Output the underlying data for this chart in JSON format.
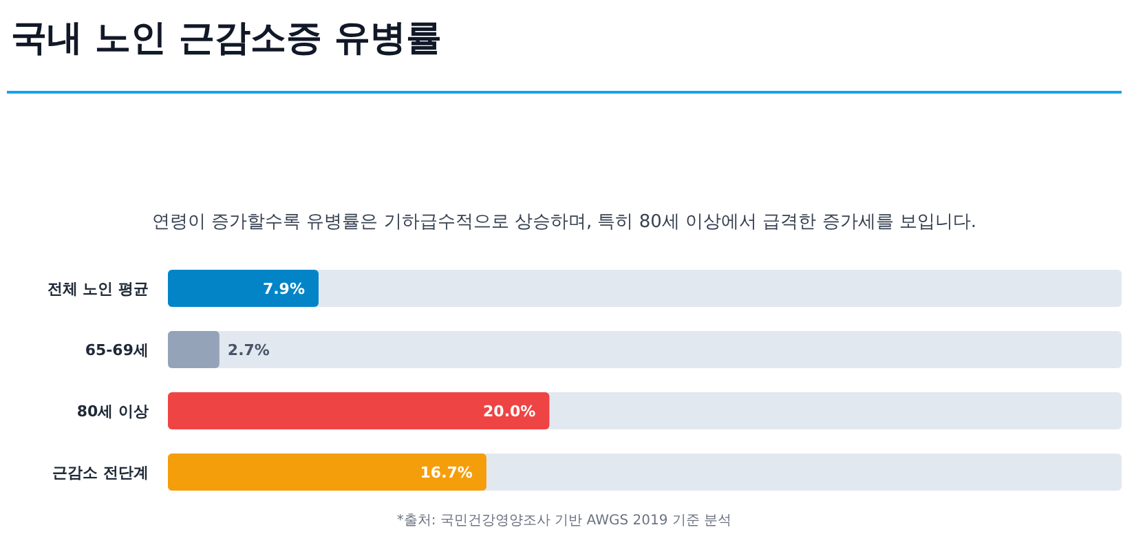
{
  "chart_data": {
    "type": "bar",
    "orientation": "horizontal",
    "title": "국내 노인 근감소증 유병률",
    "subtitle": "연령이 증가할수록 유병률은 기하급수적으로 상승하며, 특히 80세 이상에서 급격한 증가세를 보입니다.",
    "categories": [
      "전체 노인 평균",
      "65-69세",
      "80세 이상",
      "근감소 전단계"
    ],
    "values": [
      7.9,
      2.7,
      20.0,
      16.7
    ],
    "value_labels": [
      "7.9%",
      "2.7%",
      "20.0%",
      "16.7%"
    ],
    "colors": [
      "#0284c7",
      "#94a3b8",
      "#ef4444",
      "#f59e0b"
    ],
    "xlim": [
      0,
      50
    ],
    "tick_labels": "y",
    "annotations": [
      "*출처: 국민건강영양조사 기반 AWGS 2019 기준 분석"
    ]
  }
}
